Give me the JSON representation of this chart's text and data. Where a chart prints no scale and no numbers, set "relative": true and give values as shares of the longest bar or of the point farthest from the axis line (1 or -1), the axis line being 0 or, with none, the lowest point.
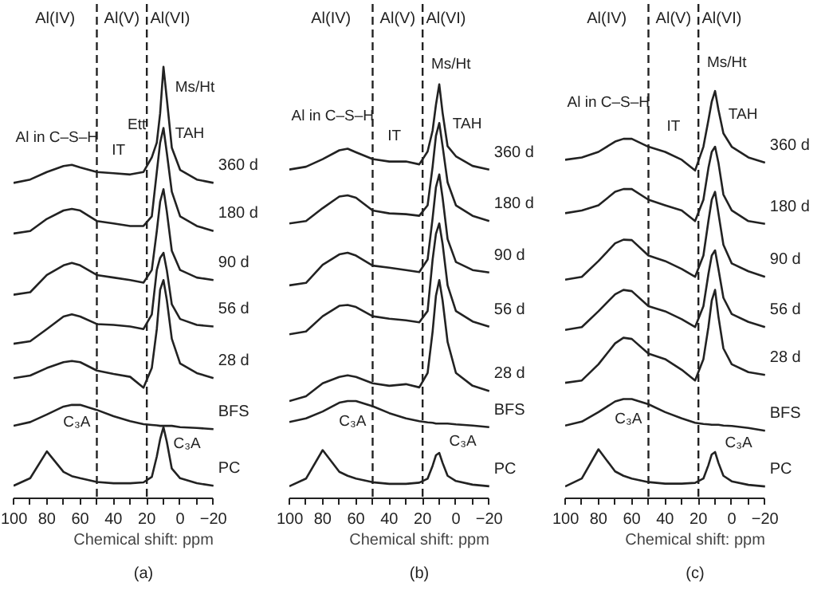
{
  "chart_data": [
    {
      "type": "line",
      "relative": true,
      "x": [
        100,
        90,
        80,
        70,
        65,
        60,
        50,
        40,
        30,
        22,
        17,
        14,
        12,
        10,
        8,
        5,
        0,
        -10,
        -20
      ],
      "xlim": [
        100,
        -20
      ],
      "xticks": [
        100,
        {
          "value": 90,
          "label": null
        },
        80,
        {
          "value": 70,
          "label": null
        },
        60,
        {
          "value": 50,
          "label": null
        },
        40,
        {
          "value": 30,
          "label": null
        },
        20,
        {
          "value": 10,
          "label": null
        },
        0,
        {
          "value": -10,
          "label": null
        },
        -20
      ],
      "xlabel": "Chemical shift: ppm",
      "tick_labels": "x",
      "grid": false,
      "line_style": "solid",
      "marker": "none",
      "ref_lines": [
        {
          "axis": "x",
          "value": 50,
          "line_style": "dashed",
          "color": "#222222"
        },
        {
          "axis": "x",
          "value": 20,
          "line_style": "dashed",
          "color": "#222222"
        }
      ],
      "series": [
        {
          "name": "360 d",
          "color": "#222222",
          "values": [
            0.723,
            0.731,
            0.749,
            0.763,
            0.766,
            0.76,
            0.749,
            0.746,
            0.743,
            0.749,
            0.784,
            0.819,
            0.889,
            1.0,
            0.924,
            0.807,
            0.754,
            0.731,
            0.723
          ]
        },
        {
          "name": "180 d",
          "color": "#222222",
          "values": [
            0.602,
            0.608,
            0.637,
            0.657,
            0.661,
            0.657,
            0.632,
            0.626,
            0.62,
            0.62,
            0.643,
            0.749,
            0.819,
            0.854,
            0.795,
            0.702,
            0.643,
            0.62,
            0.608
          ]
        },
        {
          "name": "90 d",
          "color": "#222222",
          "values": [
            0.456,
            0.462,
            0.503,
            0.526,
            0.532,
            0.526,
            0.503,
            0.497,
            0.491,
            0.485,
            0.515,
            0.608,
            0.678,
            0.708,
            0.655,
            0.561,
            0.515,
            0.497,
            0.491
          ]
        },
        {
          "name": "56 d",
          "color": "#222222",
          "values": [
            0.339,
            0.345,
            0.374,
            0.404,
            0.409,
            0.404,
            0.386,
            0.384,
            0.38,
            0.374,
            0.409,
            0.515,
            0.544,
            0.556,
            0.515,
            0.433,
            0.398,
            0.384,
            0.38
          ]
        },
        {
          "name": "28 d",
          "color": "#222222",
          "values": [
            0.257,
            0.263,
            0.281,
            0.295,
            0.298,
            0.295,
            0.275,
            0.267,
            0.26,
            0.234,
            0.281,
            0.374,
            0.468,
            0.491,
            0.444,
            0.351,
            0.292,
            0.269,
            0.257
          ]
        },
        {
          "name": "BFS",
          "color": "#222222",
          "values": [
            0.143,
            0.152,
            0.17,
            0.189,
            0.193,
            0.193,
            0.181,
            0.166,
            0.154,
            0.147,
            0.145,
            0.144,
            0.143,
            0.143,
            0.143,
            0.143,
            0.14,
            0.138,
            0.135
          ]
        },
        {
          "name": "PC",
          "color": "#222222",
          "values": [
            0,
            0.018,
            0.082,
            0.033,
            0.023,
            0.018,
            0.009,
            0.006,
            0.006,
            0.008,
            0.021,
            0.07,
            0.111,
            0.14,
            0.105,
            0.041,
            0.018,
            0.006,
            0
          ]
        }
      ],
      "annotations": [
        "Al(IV)",
        "Al(V)",
        "Al(VI)",
        "Ett",
        "Ms/Ht",
        "TAH",
        "IT",
        "Al in C–S–H",
        "C₃A",
        "C₃A",
        "(a)"
      ]
    },
    {
      "type": "line",
      "relative": true,
      "x": [
        100,
        90,
        80,
        70,
        65,
        60,
        50,
        40,
        30,
        22,
        17,
        14,
        12,
        10,
        8,
        5,
        0,
        -10,
        -20
      ],
      "xlim": [
        100,
        -20
      ],
      "xticks": [
        100,
        {
          "value": 90,
          "label": null
        },
        80,
        {
          "value": 70,
          "label": null
        },
        60,
        {
          "value": 50,
          "label": null
        },
        40,
        {
          "value": 30,
          "label": null
        },
        20,
        {
          "value": 10,
          "label": null
        },
        0,
        {
          "value": -10,
          "label": null
        },
        -20
      ],
      "xlabel": "Chemical shift: ppm",
      "tick_labels": "x",
      "grid": false,
      "line_style": "solid",
      "marker": "none",
      "ref_lines": [
        {
          "axis": "x",
          "value": 50,
          "line_style": "dashed",
          "color": "#222222"
        },
        {
          "axis": "x",
          "value": 20,
          "line_style": "dashed",
          "color": "#222222"
        }
      ],
      "series": [
        {
          "name": "360 d",
          "color": "#222222",
          "values": [
            0.788,
            0.795,
            0.814,
            0.836,
            0.84,
            0.831,
            0.814,
            0.808,
            0.808,
            0.801,
            0.833,
            0.885,
            0.949,
            1.0,
            0.929,
            0.846,
            0.821,
            0.797,
            0.788
          ]
        },
        {
          "name": "180 d",
          "color": "#222222",
          "values": [
            0.654,
            0.66,
            0.692,
            0.721,
            0.724,
            0.718,
            0.686,
            0.679,
            0.677,
            0.673,
            0.699,
            0.795,
            0.872,
            0.904,
            0.846,
            0.756,
            0.699,
            0.673,
            0.66
          ]
        },
        {
          "name": "90 d",
          "color": "#222222",
          "values": [
            0.5,
            0.506,
            0.551,
            0.577,
            0.581,
            0.574,
            0.549,
            0.544,
            0.538,
            0.533,
            0.564,
            0.667,
            0.744,
            0.776,
            0.718,
            0.615,
            0.558,
            0.538,
            0.532
          ]
        },
        {
          "name": "56 d",
          "color": "#222222",
          "values": [
            0.378,
            0.385,
            0.423,
            0.449,
            0.451,
            0.446,
            0.423,
            0.417,
            0.413,
            0.408,
            0.436,
            0.564,
            0.628,
            0.654,
            0.603,
            0.5,
            0.436,
            0.41,
            0.397
          ]
        },
        {
          "name": "28 d",
          "color": "#222222",
          "values": [
            0.212,
            0.224,
            0.256,
            0.272,
            0.276,
            0.272,
            0.256,
            0.25,
            0.254,
            0.246,
            0.282,
            0.385,
            0.474,
            0.513,
            0.462,
            0.359,
            0.282,
            0.25,
            0.237
          ]
        },
        {
          "name": "BFS",
          "color": "#222222",
          "values": [
            0.16,
            0.169,
            0.186,
            0.208,
            0.212,
            0.212,
            0.199,
            0.182,
            0.169,
            0.162,
            0.159,
            0.158,
            0.156,
            0.156,
            0.156,
            0.156,
            0.154,
            0.151,
            0.147
          ]
        },
        {
          "name": "PC",
          "color": "#222222",
          "values": [
            0,
            0.019,
            0.09,
            0.036,
            0.026,
            0.019,
            0.01,
            0.006,
            0.006,
            0.009,
            0.019,
            0.051,
            0.077,
            0.083,
            0.058,
            0.026,
            0.013,
            0.004,
            0
          ]
        }
      ],
      "annotations": [
        "Al(IV)",
        "Al(V)",
        "Al(VI)",
        "Ms/Ht",
        "TAH",
        "IT",
        "Al in C–S–H",
        "C₃A",
        "C₃A",
        "(b)"
      ]
    },
    {
      "type": "line",
      "relative": true,
      "x": [
        100,
        90,
        80,
        70,
        65,
        60,
        50,
        40,
        30,
        22,
        17,
        14,
        12,
        10,
        8,
        5,
        0,
        -10,
        -20
      ],
      "xlim": [
        100,
        -20
      ],
      "xticks": [
        100,
        {
          "value": 90,
          "label": null
        },
        80,
        {
          "value": 70,
          "label": null
        },
        60,
        {
          "value": 50,
          "label": null
        },
        40,
        {
          "value": 30,
          "label": null
        },
        20,
        {
          "value": 10,
          "label": null
        },
        0,
        {
          "value": -10,
          "label": null
        },
        -20
      ],
      "xlabel": "Chemical shift: ppm",
      "tick_labels": "x",
      "grid": false,
      "line_style": "solid",
      "marker": "none",
      "ref_lines": [
        {
          "axis": "x",
          "value": 50,
          "line_style": "dashed",
          "color": "#222222"
        },
        {
          "axis": "x",
          "value": 20,
          "line_style": "dashed",
          "color": "#222222"
        }
      ],
      "series": [
        {
          "name": "360 d",
          "color": "#222222",
          "values": [
            0.826,
            0.832,
            0.846,
            0.872,
            0.879,
            0.879,
            0.859,
            0.846,
            0.826,
            0.799,
            0.859,
            0.926,
            0.973,
            1.0,
            0.953,
            0.893,
            0.859,
            0.832,
            0.819
          ]
        },
        {
          "name": "180 d",
          "color": "#222222",
          "values": [
            0.691,
            0.698,
            0.711,
            0.745,
            0.752,
            0.752,
            0.725,
            0.711,
            0.698,
            0.671,
            0.725,
            0.805,
            0.846,
            0.859,
            0.819,
            0.738,
            0.698,
            0.671,
            0.664
          ]
        },
        {
          "name": "90 d",
          "color": "#222222",
          "values": [
            0.523,
            0.53,
            0.57,
            0.615,
            0.624,
            0.623,
            0.584,
            0.57,
            0.55,
            0.53,
            0.584,
            0.671,
            0.725,
            0.745,
            0.691,
            0.611,
            0.564,
            0.544,
            0.53
          ]
        },
        {
          "name": "56 d",
          "color": "#222222",
          "values": [
            0.396,
            0.403,
            0.443,
            0.486,
            0.497,
            0.494,
            0.456,
            0.443,
            0.423,
            0.403,
            0.456,
            0.537,
            0.584,
            0.597,
            0.55,
            0.477,
            0.436,
            0.416,
            0.403
          ]
        },
        {
          "name": "28 d",
          "color": "#222222",
          "values": [
            0.262,
            0.268,
            0.309,
            0.362,
            0.376,
            0.373,
            0.336,
            0.322,
            0.295,
            0.268,
            0.322,
            0.403,
            0.47,
            0.497,
            0.43,
            0.349,
            0.309,
            0.289,
            0.282
          ]
        },
        {
          "name": "BFS",
          "color": "#222222",
          "values": [
            0.154,
            0.164,
            0.188,
            0.215,
            0.221,
            0.221,
            0.208,
            0.188,
            0.172,
            0.161,
            0.158,
            0.157,
            0.156,
            0.156,
            0.156,
            0.154,
            0.153,
            0.148,
            0.141
          ]
        },
        {
          "name": "PC",
          "color": "#222222",
          "values": [
            0,
            0.02,
            0.094,
            0.038,
            0.027,
            0.02,
            0.011,
            0.007,
            0.007,
            0.009,
            0.02,
            0.054,
            0.081,
            0.087,
            0.06,
            0.027,
            0.013,
            0.004,
            0
          ]
        }
      ],
      "annotations": [
        "Al(IV)",
        "Al(V)",
        "Al(VI)",
        "Ms/Ht",
        "TAH",
        "IT",
        "Al in C–S–H",
        "C₃A",
        "C₃A",
        "(c)"
      ]
    }
  ]
}
